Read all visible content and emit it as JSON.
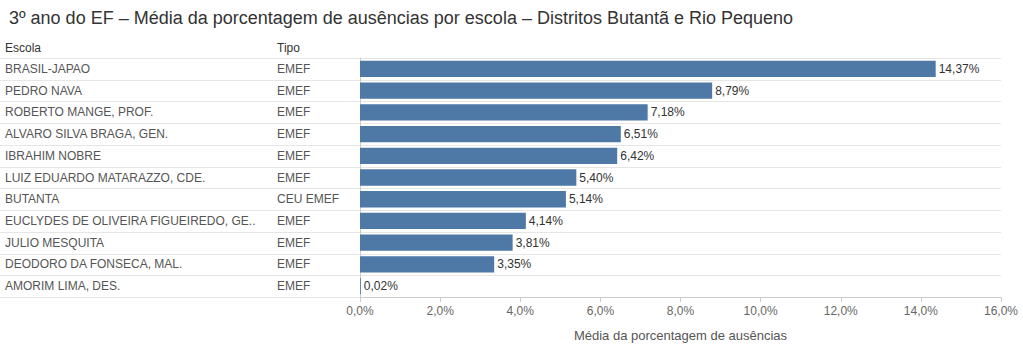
{
  "chart_data": {
    "type": "bar",
    "orientation": "horizontal",
    "title": "3º ano do EF – Média da porcentagem de ausências por escola – Distritos Butantã e Rio Pequeno",
    "categories_title": "Escola",
    "groups_title": "Tipo",
    "categories": [
      "BRASIL-JAPAO",
      "PEDRO NAVA",
      "ROBERTO MANGE, PROF.",
      "ALVARO SILVA BRAGA, GEN.",
      "IBRAHIM NOBRE",
      "LUIZ EDUARDO MATARAZZO, CDE.",
      "BUTANTA",
      "EUCLYDES DE OLIVEIRA FIGUEIREDO, GE..",
      "JULIO MESQUITA",
      "DEODORO DA FONSECA, MAL.",
      "AMORIM LIMA, DES."
    ],
    "groups": [
      "EMEF",
      "EMEF",
      "EMEF",
      "EMEF",
      "EMEF",
      "EMEF",
      "CEU EMEF",
      "EMEF",
      "EMEF",
      "EMEF",
      "EMEF"
    ],
    "values": [
      14.37,
      8.79,
      7.18,
      6.51,
      6.42,
      5.4,
      5.14,
      4.14,
      3.81,
      3.35,
      0.02
    ],
    "value_labels": [
      "14,37%",
      "8,79%",
      "7,18%",
      "6,51%",
      "6,42%",
      "5,40%",
      "5,14%",
      "4,14%",
      "3,81%",
      "3,35%",
      "0,02%"
    ],
    "color": "#4e79a7",
    "xlabel": "Média da porcentagem de ausências",
    "xlim": [
      0,
      16
    ],
    "xticks": [
      {
        "value": 0,
        "label": "0,0%"
      },
      {
        "value": 2,
        "label": "2,0%"
      },
      {
        "value": 4,
        "label": "4,0%"
      },
      {
        "value": 6,
        "label": "6,0%"
      },
      {
        "value": 8,
        "label": "8,0%"
      },
      {
        "value": 10,
        "label": "10,0%"
      },
      {
        "value": 12,
        "label": "12,0%"
      },
      {
        "value": 14,
        "label": "14,0%"
      },
      {
        "value": 16,
        "label": "16,0%"
      }
    ],
    "data_labels": true,
    "grid": false
  }
}
